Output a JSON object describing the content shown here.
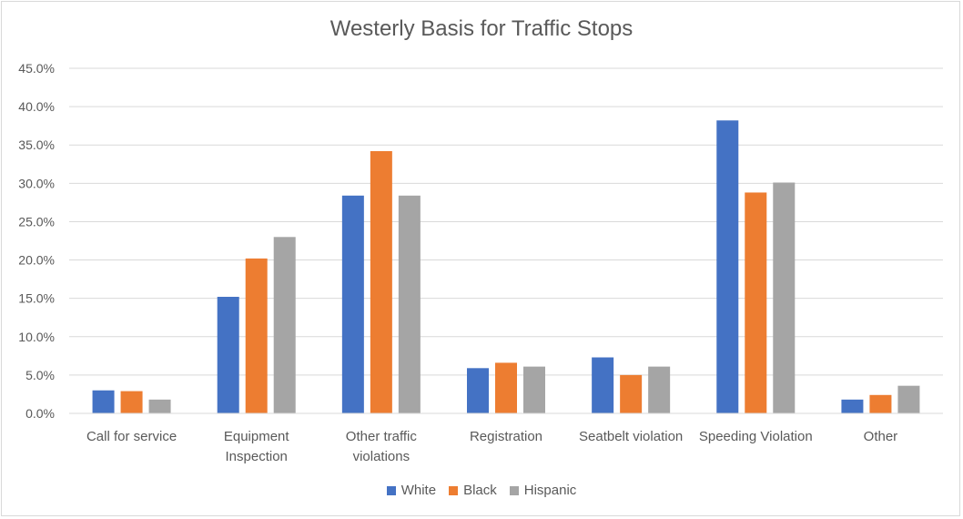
{
  "chart_data": {
    "type": "bar",
    "title": "Westerly Basis for Traffic Stops",
    "categories": [
      [
        "Call for service"
      ],
      [
        "Equipment",
        "Inspection"
      ],
      [
        "Other traffic",
        "violations"
      ],
      [
        "Registration"
      ],
      [
        "Seatbelt violation"
      ],
      [
        "Speeding Violation"
      ],
      [
        "Other"
      ]
    ],
    "series": [
      {
        "name": "White",
        "color": "#4472C4",
        "values": [
          3.0,
          15.2,
          28.4,
          5.9,
          7.3,
          38.2,
          1.8
        ]
      },
      {
        "name": "Black",
        "color": "#ED7D31",
        "values": [
          2.9,
          20.2,
          34.2,
          6.6,
          5.0,
          28.8,
          2.4
        ]
      },
      {
        "name": "Hispanic",
        "color": "#A5A5A5",
        "values": [
          1.8,
          23.0,
          28.4,
          6.1,
          6.1,
          30.1,
          3.6
        ]
      }
    ],
    "ylim": [
      0,
      45
    ],
    "yticks": [
      "0.0%",
      "5.0%",
      "10.0%",
      "15.0%",
      "20.0%",
      "25.0%",
      "30.0%",
      "35.0%",
      "40.0%",
      "45.0%"
    ],
    "grid": true,
    "legend": "bottom"
  }
}
